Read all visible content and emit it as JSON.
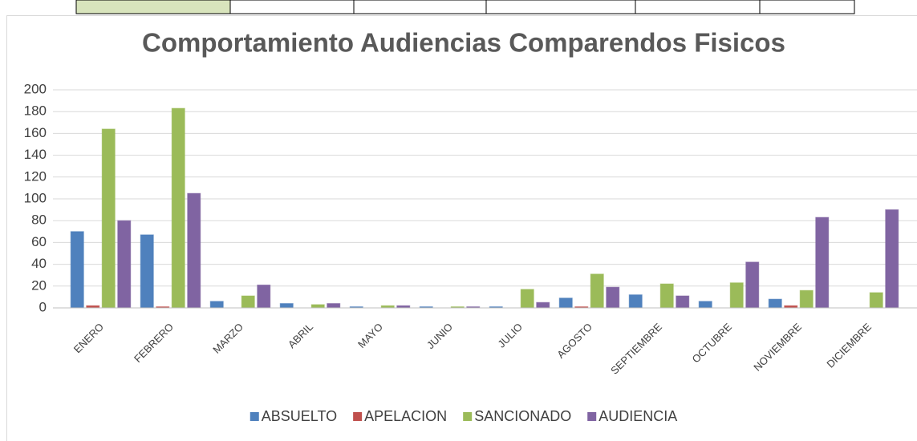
{
  "chart_data": {
    "type": "bar",
    "title": "Comportamiento Audiencias Comparendos Fisicos",
    "categories": [
      "ENERO",
      "FEBRERO",
      "MARZO",
      "ABRIL",
      "MAYO",
      "JUNIO",
      "JULIO",
      "AGOSTO",
      "SEPTIEMBRE",
      "OCTUBRE",
      "NOVIEMBRE",
      "DICIEMBRE"
    ],
    "series": [
      {
        "name": "ABSUELTO",
        "color": "#4f81bd",
        "values": [
          70,
          67,
          6,
          4,
          1,
          1,
          1,
          9,
          12,
          6,
          8,
          0
        ]
      },
      {
        "name": "APELACION",
        "color": "#c0504d",
        "values": [
          2,
          1,
          0,
          0,
          0,
          0,
          0,
          1,
          0,
          0,
          2,
          0
        ]
      },
      {
        "name": "SANCIONADO",
        "color": "#9bbb59",
        "values": [
          164,
          183,
          11,
          3,
          2,
          1,
          17,
          31,
          22,
          23,
          16,
          14
        ]
      },
      {
        "name": "AUDIENCIA",
        "color": "#8064a2",
        "values": [
          80,
          105,
          21,
          4,
          2,
          1,
          5,
          19,
          11,
          42,
          83,
          90
        ]
      }
    ],
    "ylim": [
      0,
      200
    ],
    "yticks": [
      0,
      20,
      40,
      60,
      80,
      100,
      120,
      140,
      160,
      180,
      200
    ],
    "grid": true,
    "legend": "bottom"
  }
}
